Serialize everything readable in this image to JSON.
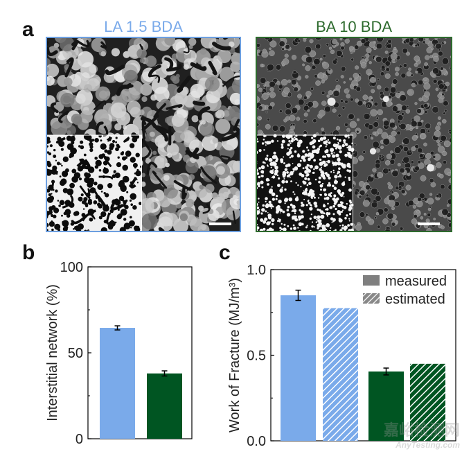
{
  "colors": {
    "blue": "#7aaaea",
    "green": "#005522",
    "blue_border": "#6c9fe0",
    "green_border": "#2d6a2d"
  },
  "panel_a": {
    "letter": "a",
    "images": [
      {
        "title": "LA 1.5 BDA",
        "title_color": "#7aaaea",
        "texture": "granular network with dark interstitial cracks",
        "inset": "binarized detail, bottom-left"
      },
      {
        "title": "BA 10 BDA",
        "title_color": "#2d6a2d",
        "texture": "dense spherical particles",
        "inset": "binarized detail, bottom-left"
      }
    ]
  },
  "panel_b": {
    "letter": "b"
  },
  "panel_c": {
    "letter": "c"
  },
  "watermark": {
    "text": "嘉峪检测网",
    "subtext": "AnyTesting.com"
  },
  "chart_data": [
    {
      "type": "bar",
      "ylabel": "Interstitial network (%)",
      "ylim": [
        0,
        100
      ],
      "yticks": [
        "0",
        "50",
        "100"
      ],
      "categories": [
        "LA 1.5 BDA",
        "BA 10 BDA"
      ],
      "values": [
        64.5,
        38
      ],
      "errors": [
        1.2,
        1.5
      ],
      "colors": [
        "#7aaaea",
        "#005522"
      ]
    },
    {
      "type": "bar",
      "ylabel": "Work of Fracture (MJ/m³)",
      "ylim": [
        0,
        1.0
      ],
      "yticks": [
        "0.0",
        "0.5",
        "1.0"
      ],
      "legend": [
        "measured",
        "estimated"
      ],
      "legend_placement": "top-right",
      "bars": [
        {
          "group": "LA 1.5 BDA",
          "kind": "measured",
          "value": 0.85,
          "error": 0.03,
          "color": "#7aaaea",
          "hatched": false
        },
        {
          "group": "LA 1.5 BDA",
          "kind": "estimated",
          "value": 0.775,
          "error": null,
          "color": "#7aaaea",
          "hatched": true
        },
        {
          "group": "BA 10 BDA",
          "kind": "measured",
          "value": 0.405,
          "error": 0.02,
          "color": "#005522",
          "hatched": false
        },
        {
          "group": "BA 10 BDA",
          "kind": "estimated",
          "value": 0.45,
          "error": null,
          "color": "#005522",
          "hatched": true
        }
      ]
    }
  ]
}
